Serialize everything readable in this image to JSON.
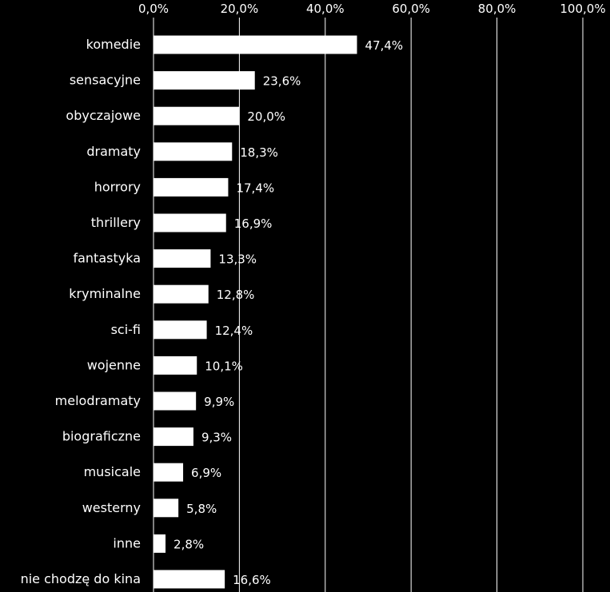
{
  "chart_data": {
    "type": "bar",
    "orientation": "horizontal",
    "categories": [
      "komedie",
      "sensacyjne",
      "obyczajowe",
      "dramaty",
      "horrory",
      "thrillery",
      "fantastyka",
      "kryminalne",
      "sci-fi",
      "wojenne",
      "melodramaty",
      "biograficzne",
      "musicale",
      "westerny",
      "inne",
      "nie chodzę do kina"
    ],
    "values": [
      47.4,
      23.6,
      20.0,
      18.3,
      17.4,
      16.9,
      13.3,
      12.8,
      12.4,
      10.1,
      9.9,
      9.3,
      6.9,
      5.8,
      2.8,
      16.6
    ],
    "data_labels": [
      "47,4%",
      "23,6%",
      "20,0%",
      "18,3%",
      "17,4%",
      "16,9%",
      "13,3%",
      "12,8%",
      "12,4%",
      "10,1%",
      "9,9%",
      "9,3%",
      "6,9%",
      "5,8%",
      "2,8%",
      "16,6%"
    ],
    "x_ticks": [
      0,
      20,
      40,
      60,
      80,
      100
    ],
    "x_tick_labels": [
      "0,0%",
      "20,0%",
      "40,0%",
      "60,0%",
      "80,0%",
      "100,0%"
    ],
    "xlim": [
      0,
      100
    ],
    "x_axis_position": "top",
    "title": "",
    "xlabel": "",
    "ylabel": "",
    "grid": true,
    "legend": "none",
    "colors": {
      "background": "#000000",
      "bar": "#ffffff",
      "text": "#ffffff",
      "grid": "#ffffff"
    }
  }
}
